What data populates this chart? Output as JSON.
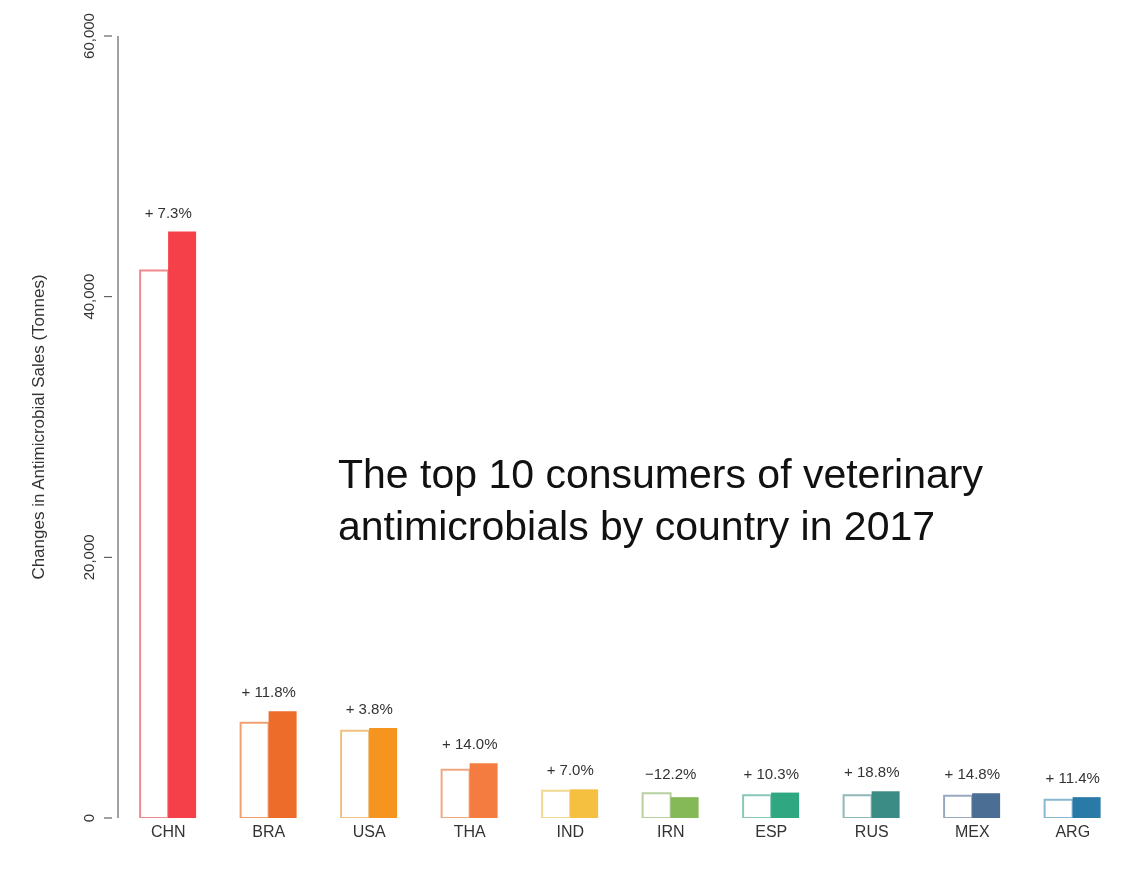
{
  "chart_data": {
    "type": "bar",
    "ylabel": "Changes in Antimicrobial Sales (Tonnes)",
    "annotations": [
      "The top 10 consumers of veterinary antimicrobials by country in 2017",
      {
        "text": "+ 7.3%",
        "x": "CHN",
        "y": 45000
      },
      {
        "text": "+ 11.8%",
        "x": "BRA",
        "y": 8200
      },
      {
        "text": "+ 3.8%",
        "x": "USA",
        "y": 6900
      },
      {
        "text": "+ 14.0%",
        "x": "THA",
        "y": 4200
      },
      {
        "text": "+ 7.0%",
        "x": "IND",
        "y": 2200
      },
      {
        "text": "−12.2%",
        "x": "IRN",
        "y": 1900
      },
      {
        "text": "+ 10.3%",
        "x": "ESP",
        "y": 1950
      },
      {
        "text": "+ 18.8%",
        "x": "RUS",
        "y": 2050
      },
      {
        "text": "+ 14.8%",
        "x": "MEX",
        "y": 1900
      },
      {
        "text": "+ 11.4%",
        "x": "ARG",
        "y": 1600
      }
    ],
    "categories": [
      "CHN",
      "BRA",
      "USA",
      "THA",
      "IND",
      "IRN",
      "ESP",
      "RUS",
      "MEX",
      "ARG"
    ],
    "series": [
      {
        "colors": [
          "#f08a8e",
          "#f0a070",
          "#f0c080",
          "#f0a880",
          "#f0d890",
          "#b8d0a0",
          "#88c8b8",
          "#90b8b8",
          "#98a8c0",
          "#88b8d0"
        ],
        "values": [
          42000,
          7300,
          6700,
          3700,
          2100,
          1900,
          1750,
          1750,
          1700,
          1400
        ]
      },
      {
        "colors": [
          "#f5404a",
          "#ee6c2a",
          "#f5941e",
          "#f57c40",
          "#f5c040",
          "#85b957",
          "#2fa882",
          "#3a8c84",
          "#4a6e94",
          "#2a7aa8"
        ],
        "values": [
          45000,
          8200,
          6900,
          4200,
          2200,
          1600,
          1950,
          2050,
          1900,
          1600
        ]
      }
    ],
    "ylim": [
      0,
      60000
    ],
    "yticks": [
      {
        "value": 0,
        "label": "0"
      },
      {
        "value": 20000,
        "label": "20,000"
      },
      {
        "value": 40000,
        "label": "40,000"
      },
      {
        "value": 60000,
        "label": "60,000"
      }
    ],
    "grid": false,
    "legend": false
  }
}
